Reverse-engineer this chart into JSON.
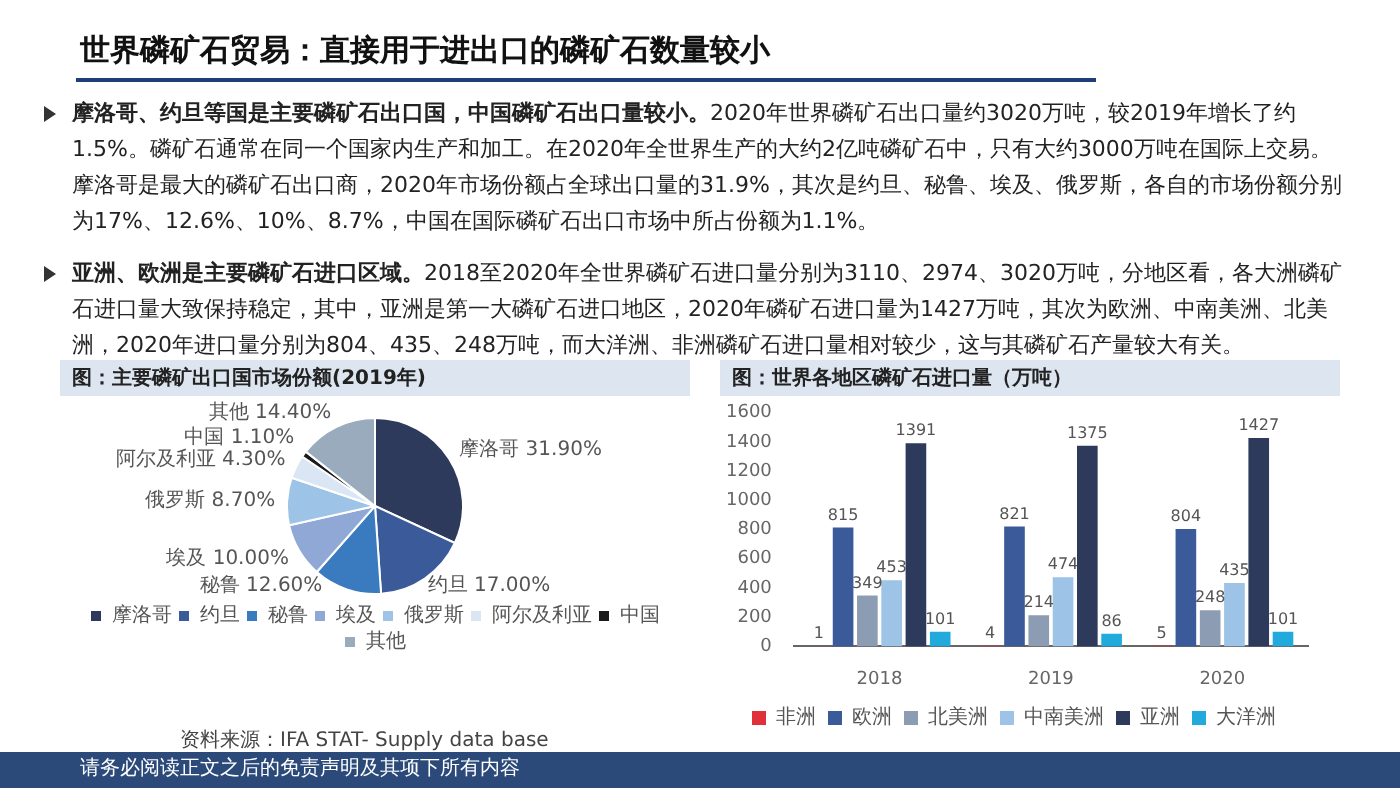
{
  "chart_data": [
    {
      "type": "other",
      "title": "世界磷矿石贸易：直接用于进出口的磷矿石数量较小",
      "annotations": [
        "摩洛哥、约旦等国是主要磷矿石出口国，中国磷矿石出口量较小。",
        "2020年世界磷矿石出口量约3020万吨，较2019年增长了约1.5%。磷矿石通常在同一个国家内生产和加工。在2020年全世界生产的大约2亿吨磷矿石中，只有大约3000万吨在国际上交易。摩洛哥是最大的磷矿石出口商，2020年市场份额占全球出口量的31.9%，其次是约旦、秘鲁、埃及、俄罗斯，各自的市场份额分别为17%、12.6%、10%、8.7%，中国在国际磷矿石出口市场中所占份额为1.1%。",
        "亚洲、欧洲是主要磷矿石进口区域。",
        "2018至2020年全世界磷矿石进口量分别为3110、2974、3020万吨，分地区看，各大洲磷矿石进口量大致保持稳定，其中，亚洲是第一大磷矿石进口地区，2020年磷矿石进口量为1427万吨，其次为欧洲、中南美洲、北美洲，2020年进口量分别为804、435、248万吨，而大洋洲、非洲磷矿石进口量相对较少，这与其磷矿石产量较大有关。",
        "请务必阅读正文之后的免责声明及其项下所有内容"
      ]
    },
    {
      "type": "pie",
      "title": "图：主要磷矿出口国市场份额(2019年)",
      "categories": [
        "摩洛哥",
        "约旦",
        "秘鲁",
        "埃及",
        "俄罗斯",
        "阿尔及利亚",
        "中国",
        "其他"
      ],
      "values": [
        31.9,
        17,
        12.6,
        10,
        8.7,
        4.3,
        1.1,
        14.4
      ],
      "value_labels": [
        "31.90%",
        "17.00%",
        "12.60%",
        "10.00%",
        "8.70%",
        "4.30%",
        "1.10%",
        "14.40%"
      ],
      "colors": [
        "#2e3a5c",
        "#3a5a9a",
        "#3a7abf",
        "#8fa8d6",
        "#9dc3e6",
        "#dbe6f4",
        "#1a1a1a",
        "#9aabbd"
      ],
      "legend": "bottom",
      "annotations": [
        "资料来源：IFA STAT- Supply data base"
      ]
    },
    {
      "type": "bar",
      "title": "图：世界各地区磷矿石进口量（万吨）",
      "categories": [
        "2018",
        "2019",
        "2020"
      ],
      "series": [
        {
          "name": "非洲",
          "color": "#e0303a",
          "values": [
            1,
            4,
            5
          ]
        },
        {
          "name": "欧洲",
          "color": "#3a5a9a",
          "values": [
            815,
            821,
            804
          ]
        },
        {
          "name": "北美洲",
          "color": "#8c9db3",
          "values": [
            349,
            214,
            248
          ]
        },
        {
          "name": "中南美洲",
          "color": "#9dc3e6",
          "values": [
            453,
            474,
            435
          ]
        },
        {
          "name": "亚洲",
          "color": "#2e3a5c",
          "values": [
            1391,
            1375,
            1427
          ]
        },
        {
          "name": "大洋洲",
          "color": "#22aadd",
          "values": [
            101,
            86,
            101
          ]
        }
      ],
      "ylim": [
        0,
        1600
      ],
      "yticks": [
        0,
        200,
        400,
        600,
        800,
        1000,
        1200,
        1400,
        1600
      ],
      "grid": false,
      "data_labels": true,
      "legend": "bottom"
    }
  ]
}
